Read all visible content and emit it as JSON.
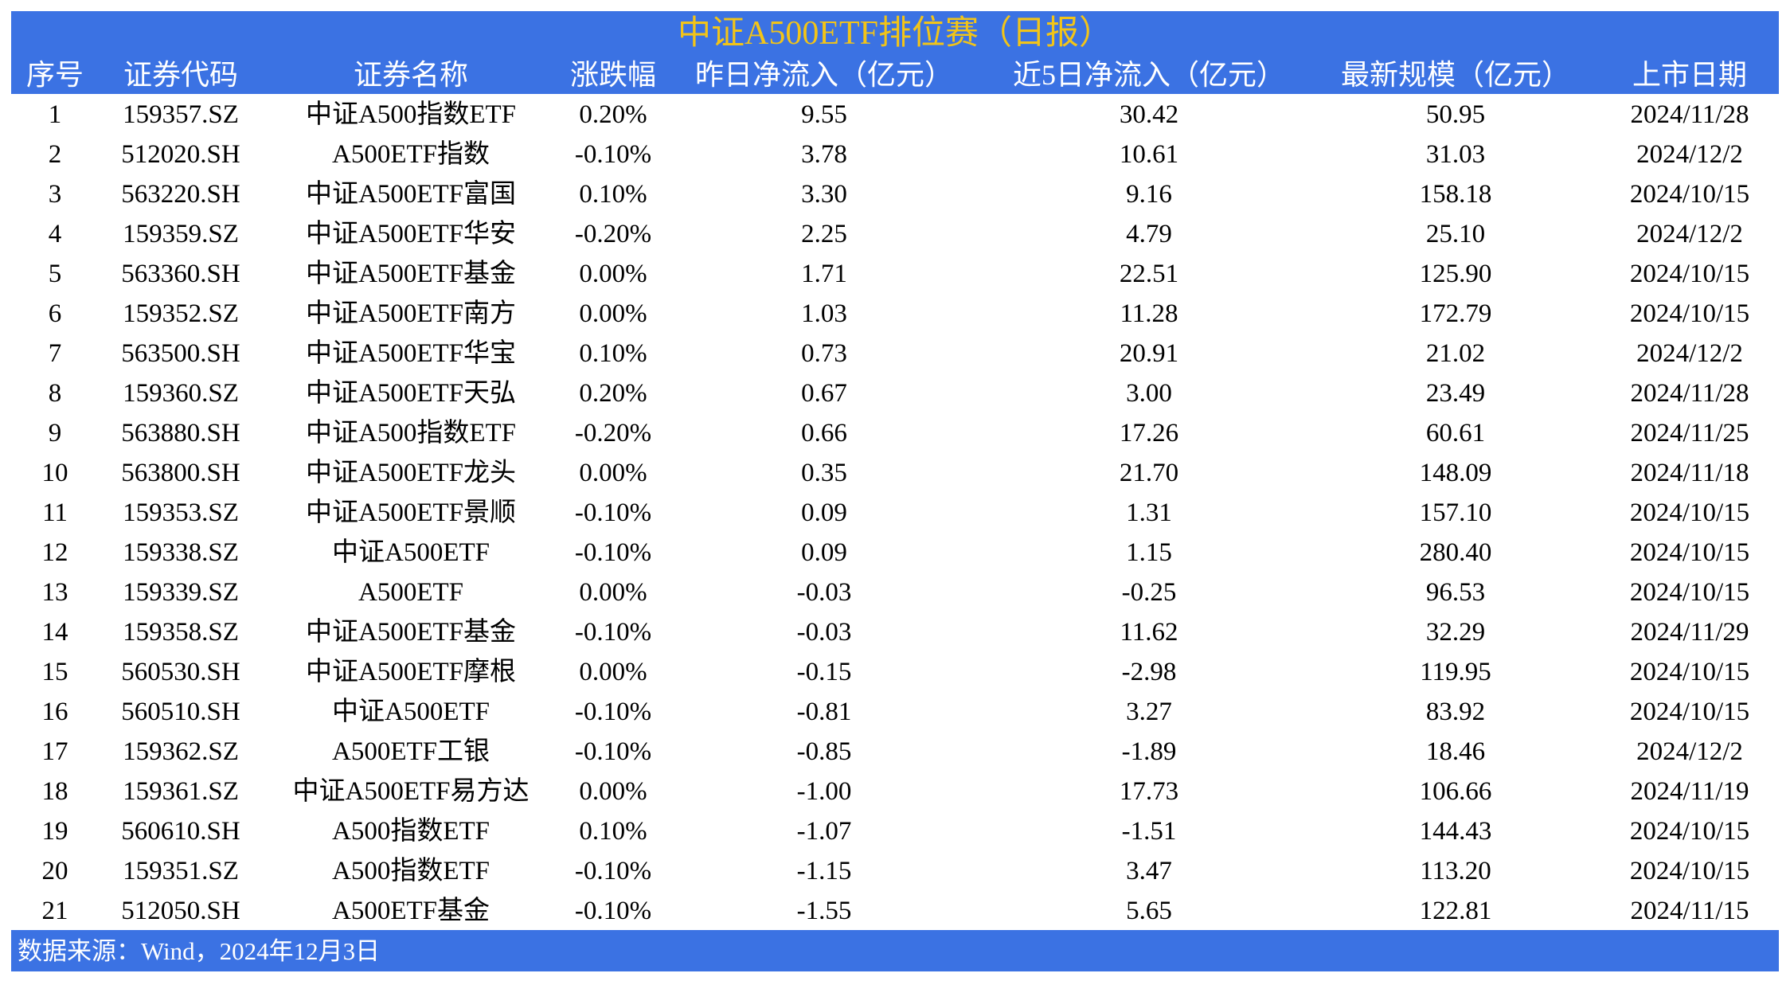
{
  "title": "中证A500ETF排位赛（日报）",
  "table": {
    "headers": [
      "序号",
      "证券代码",
      "证券名称",
      "涨跌幅",
      "昨日净流入（亿元）",
      "近5日净流入（亿元）",
      "最新规模（亿元）",
      "上市日期"
    ],
    "rows": [
      [
        "1",
        "159357.SZ",
        "中证A500指数ETF",
        "0.20%",
        "9.55",
        "30.42",
        "50.95",
        "2024/11/28"
      ],
      [
        "2",
        "512020.SH",
        "A500ETF指数",
        "-0.10%",
        "3.78",
        "10.61",
        "31.03",
        "2024/12/2"
      ],
      [
        "3",
        "563220.SH",
        "中证A500ETF富国",
        "0.10%",
        "3.30",
        "9.16",
        "158.18",
        "2024/10/15"
      ],
      [
        "4",
        "159359.SZ",
        "中证A500ETF华安",
        "-0.20%",
        "2.25",
        "4.79",
        "25.10",
        "2024/12/2"
      ],
      [
        "5",
        "563360.SH",
        "中证A500ETF基金",
        "0.00%",
        "1.71",
        "22.51",
        "125.90",
        "2024/10/15"
      ],
      [
        "6",
        "159352.SZ",
        "中证A500ETF南方",
        "0.00%",
        "1.03",
        "11.28",
        "172.79",
        "2024/10/15"
      ],
      [
        "7",
        "563500.SH",
        "中证A500ETF华宝",
        "0.10%",
        "0.73",
        "20.91",
        "21.02",
        "2024/12/2"
      ],
      [
        "8",
        "159360.SZ",
        "中证A500ETF天弘",
        "0.20%",
        "0.67",
        "3.00",
        "23.49",
        "2024/11/28"
      ],
      [
        "9",
        "563880.SH",
        "中证A500指数ETF",
        "-0.20%",
        "0.66",
        "17.26",
        "60.61",
        "2024/11/25"
      ],
      [
        "10",
        "563800.SH",
        "中证A500ETF龙头",
        "0.00%",
        "0.35",
        "21.70",
        "148.09",
        "2024/11/18"
      ],
      [
        "11",
        "159353.SZ",
        "中证A500ETF景顺",
        "-0.10%",
        "0.09",
        "1.31",
        "157.10",
        "2024/10/15"
      ],
      [
        "12",
        "159338.SZ",
        "中证A500ETF",
        "-0.10%",
        "0.09",
        "1.15",
        "280.40",
        "2024/10/15"
      ],
      [
        "13",
        "159339.SZ",
        "A500ETF",
        "0.00%",
        "-0.03",
        "-0.25",
        "96.53",
        "2024/10/15"
      ],
      [
        "14",
        "159358.SZ",
        "中证A500ETF基金",
        "-0.10%",
        "-0.03",
        "11.62",
        "32.29",
        "2024/11/29"
      ],
      [
        "15",
        "560530.SH",
        "中证A500ETF摩根",
        "0.00%",
        "-0.15",
        "-2.98",
        "119.95",
        "2024/10/15"
      ],
      [
        "16",
        "560510.SH",
        "中证A500ETF",
        "-0.10%",
        "-0.81",
        "3.27",
        "83.92",
        "2024/10/15"
      ],
      [
        "17",
        "159362.SZ",
        "A500ETF工银",
        "-0.10%",
        "-0.85",
        "-1.89",
        "18.46",
        "2024/12/2"
      ],
      [
        "18",
        "159361.SZ",
        "中证A500ETF易方达",
        "0.00%",
        "-1.00",
        "17.73",
        "106.66",
        "2024/11/19"
      ],
      [
        "19",
        "560610.SH",
        "A500指数ETF",
        "0.10%",
        "-1.07",
        "-1.51",
        "144.43",
        "2024/10/15"
      ],
      [
        "20",
        "159351.SZ",
        "A500指数ETF",
        "-0.10%",
        "-1.15",
        "3.47",
        "113.20",
        "2024/10/15"
      ],
      [
        "21",
        "512050.SH",
        "A500ETF基金",
        "-0.10%",
        "-1.55",
        "5.65",
        "122.81",
        "2024/11/15"
      ]
    ]
  },
  "source": "数据来源：Wind，2024年12月3日"
}
